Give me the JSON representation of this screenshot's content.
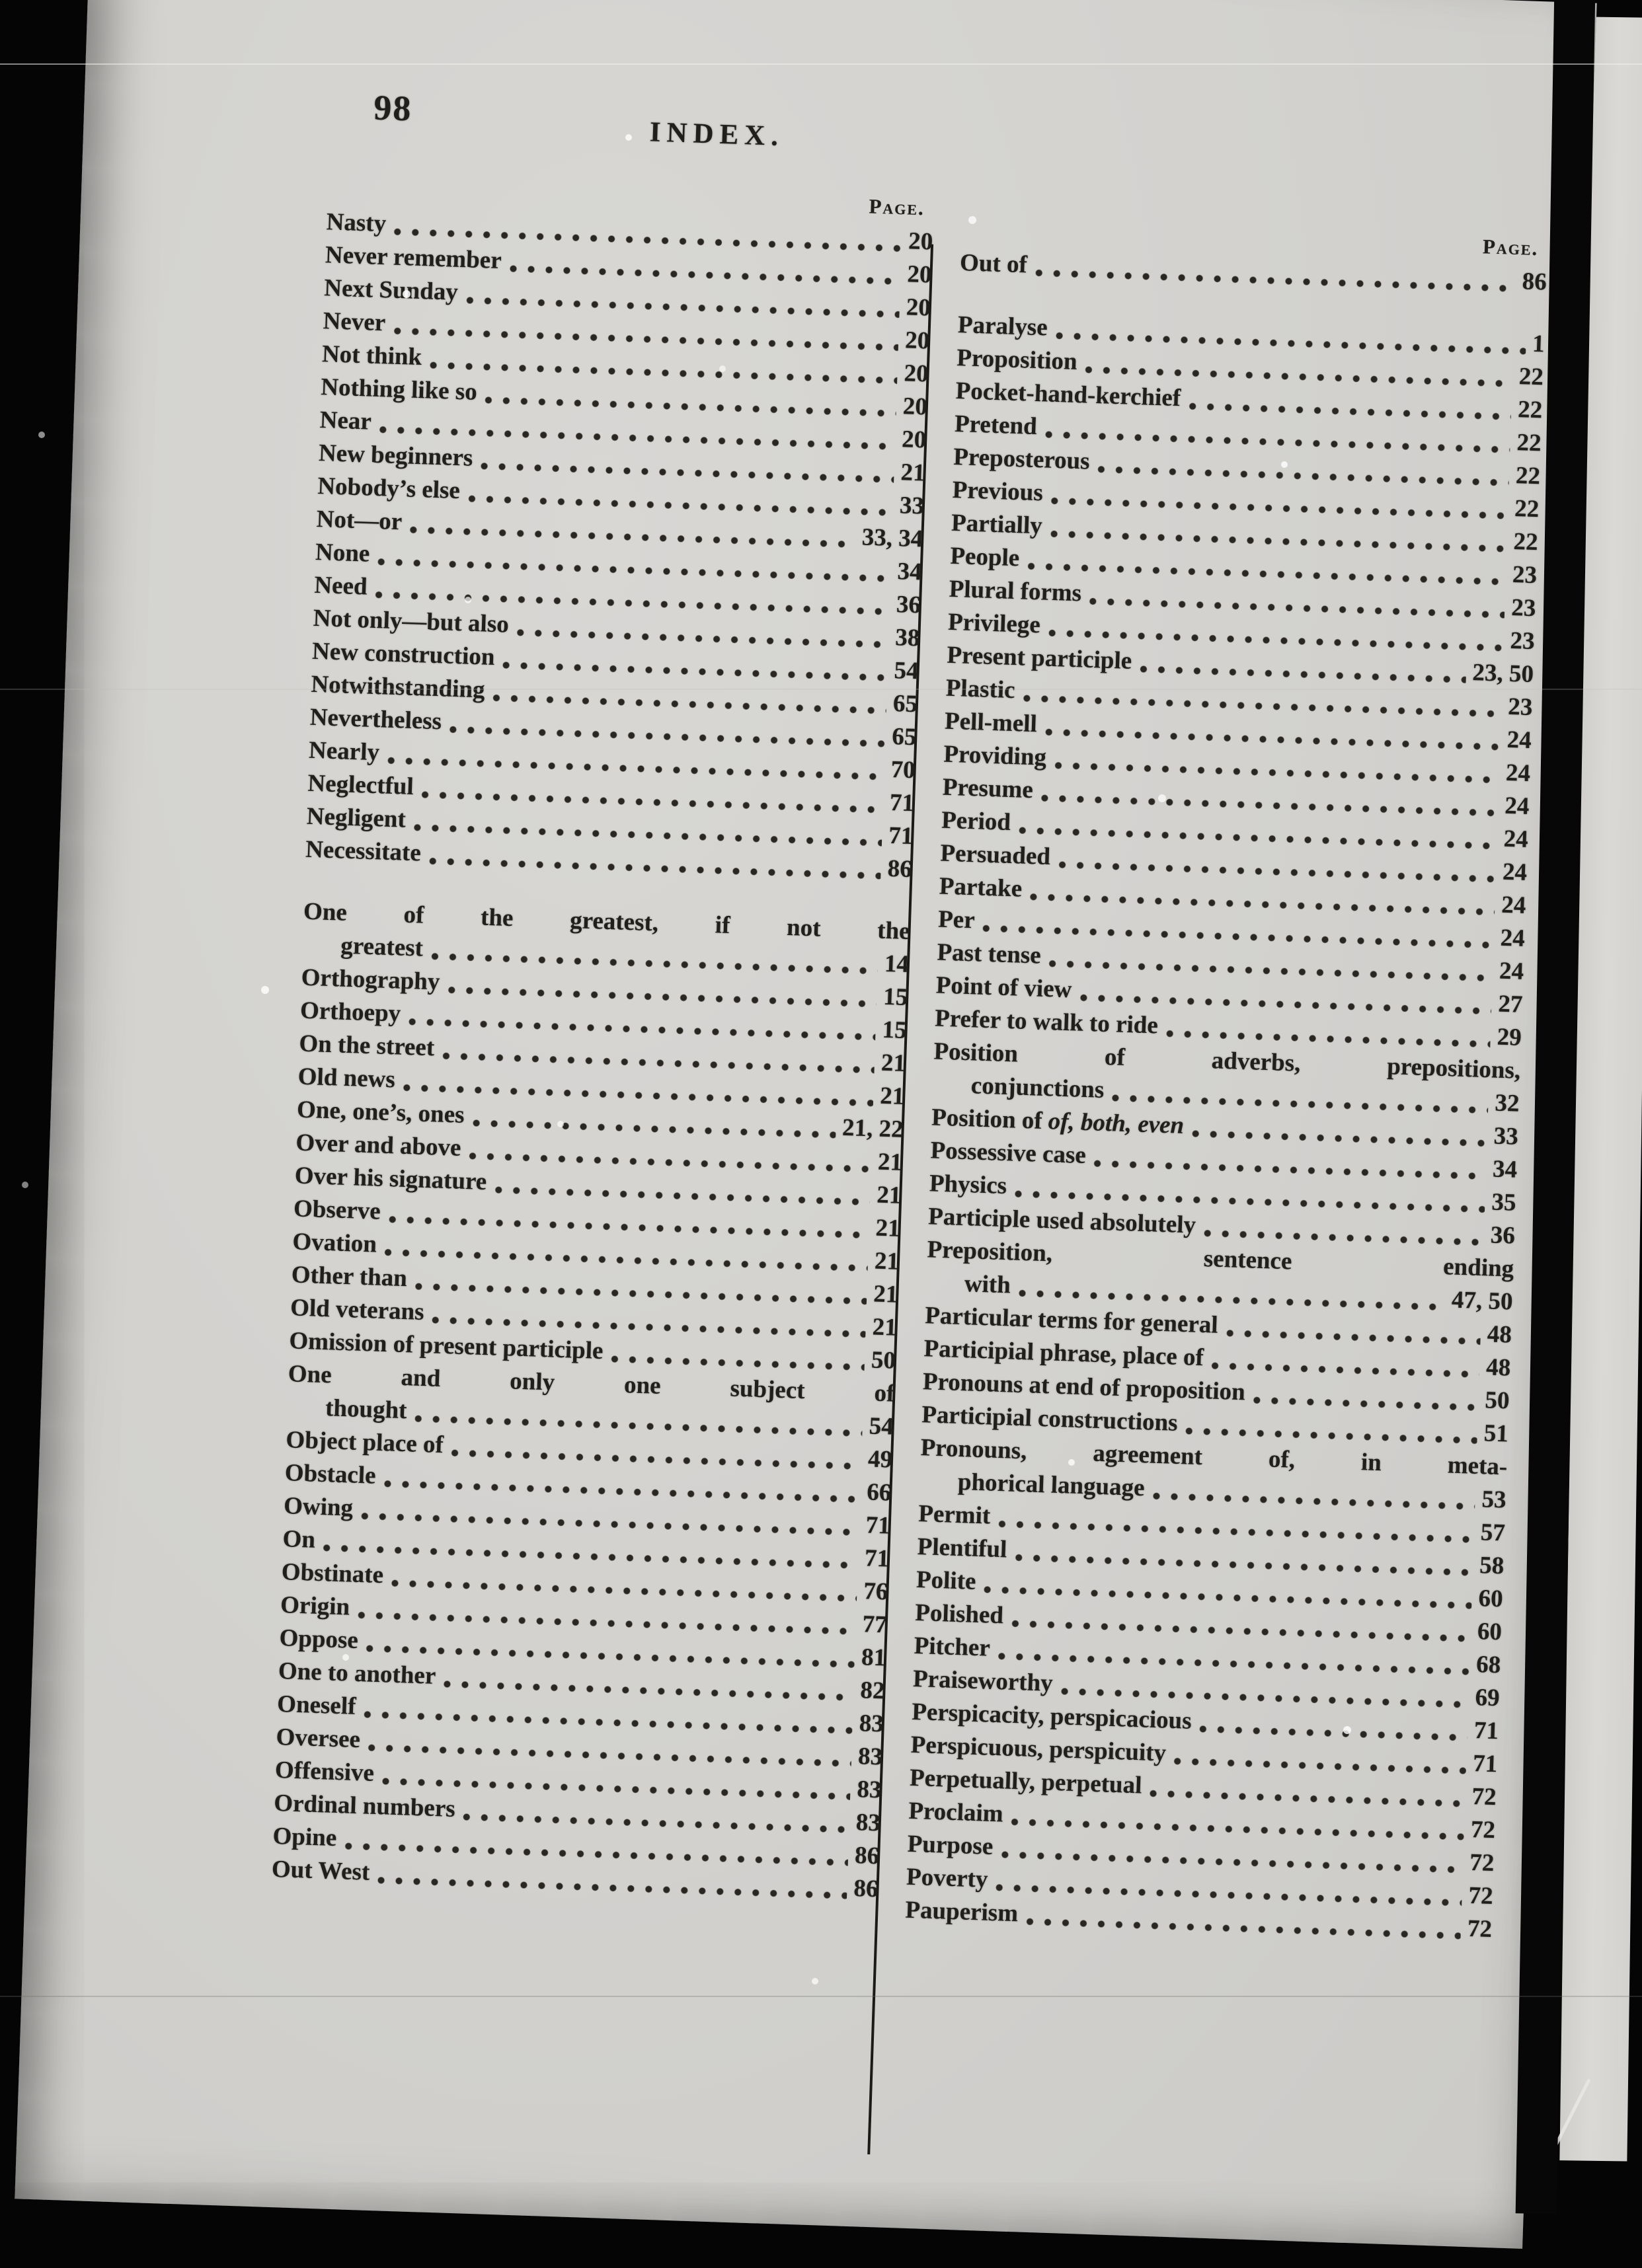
{
  "folio": "98",
  "title": "INDEX.",
  "colors": {
    "page_bg": "#d3d2cf",
    "ink": "#211f1b",
    "backdrop": "#050505"
  },
  "columns": {
    "left": {
      "header": "Page.",
      "groups": [
        {
          "lines": [
            {
              "t": "Nasty",
              "n": "20"
            },
            {
              "t": "Never remember",
              "n": "20"
            },
            {
              "t": "Next Sunday",
              "n": "20"
            },
            {
              "t": "Never",
              "n": "20"
            },
            {
              "t": "Not think",
              "n": "20"
            },
            {
              "t": "Nothing like so",
              "n": "20"
            },
            {
              "t": "Near",
              "n": "20"
            },
            {
              "t": "New beginners",
              "n": "21"
            },
            {
              "t": "Nobody’s else",
              "n": "33"
            },
            {
              "t": "Not—or",
              "n": "33, 34"
            },
            {
              "t": "None",
              "n": "34"
            },
            {
              "t": "Need",
              "n": "36"
            },
            {
              "t": "Not only—but also",
              "n": "38"
            },
            {
              "t": "New construction",
              "n": "54"
            },
            {
              "t": "Notwithstanding",
              "n": "65"
            },
            {
              "t": "Nevertheless",
              "n": "65"
            },
            {
              "t": "Nearly",
              "n": "70"
            },
            {
              "t": "Neglectful",
              "n": "71"
            },
            {
              "t": "Negligent",
              "n": "71"
            },
            {
              "t": "Necessitate",
              "n": "86"
            }
          ]
        },
        {
          "lines": [
            {
              "t": "One of the greatest, if not the",
              "j": true
            },
            {
              "t": "greatest",
              "i": 1,
              "n": "14"
            },
            {
              "t": "Orthography",
              "n": "15"
            },
            {
              "t": "Orthoepy",
              "n": "15"
            },
            {
              "t": "On the street",
              "n": "21"
            },
            {
              "t": "Old news",
              "n": "21"
            },
            {
              "t": "One, one’s, ones",
              "n": "21, 22"
            },
            {
              "t": "Over and above",
              "n": "21"
            },
            {
              "t": "Over his signature",
              "n": "21"
            },
            {
              "t": "Observe",
              "n": "21"
            },
            {
              "t": "Ovation",
              "n": "21"
            },
            {
              "t": "Other than",
              "n": "21"
            },
            {
              "t": "Old veterans",
              "n": "21"
            },
            {
              "t": "Omission of present participle",
              "n": "50"
            },
            {
              "t": "One and only one subject of",
              "j": true
            },
            {
              "t": "thought",
              "i": 1,
              "n": "54"
            },
            {
              "t": "Object place of",
              "n": "49"
            },
            {
              "t": "Obstacle",
              "n": "66"
            },
            {
              "t": "Owing",
              "n": "71"
            },
            {
              "t": "On",
              "n": "71"
            },
            {
              "t": "Obstinate",
              "n": "76"
            },
            {
              "t": "Origin",
              "n": "77"
            },
            {
              "t": "Oppose",
              "n": "81"
            },
            {
              "t": "One to another",
              "n": "82"
            },
            {
              "t": "Oneself",
              "n": "83"
            },
            {
              "t": "Oversee",
              "n": "83"
            },
            {
              "t": "Offensive",
              "n": "83"
            },
            {
              "t": "Ordinal numbers",
              "n": "83"
            },
            {
              "t": "Opine",
              "n": "86"
            },
            {
              "t": "Out West",
              "n": "86"
            }
          ]
        }
      ]
    },
    "right": {
      "header": "Page.",
      "groups": [
        {
          "lines": [
            {
              "t": "Out of",
              "n": "86"
            }
          ]
        },
        {
          "lines": [
            {
              "t": "Paralyse",
              "n": "1"
            },
            {
              "t": "Proposition",
              "n": "22"
            },
            {
              "t": "Pocket-hand-kerchief",
              "n": "22"
            },
            {
              "t": "Pretend",
              "n": "22"
            },
            {
              "t": "Preposterous",
              "n": "22"
            },
            {
              "t": "Previous",
              "n": "22"
            },
            {
              "t": "Partially",
              "n": "22"
            },
            {
              "t": "People",
              "n": "23"
            },
            {
              "t": "Plural forms",
              "n": "23"
            },
            {
              "t": "Privilege",
              "n": "23"
            },
            {
              "t": "Present participle",
              "n": "23, 50"
            },
            {
              "t": "Plastic",
              "n": "23"
            },
            {
              "t": "Pell-mell",
              "n": "24"
            },
            {
              "t": "Providing",
              "n": "24"
            },
            {
              "t": "Presume",
              "n": "24"
            },
            {
              "t": "Period",
              "n": "24"
            },
            {
              "t": "Persuaded",
              "n": "24"
            },
            {
              "t": "Partake",
              "n": "24"
            },
            {
              "t": "Per",
              "n": "24"
            },
            {
              "t": "Past tense",
              "n": "24"
            },
            {
              "t": "Point of view",
              "n": "27"
            },
            {
              "t": "Prefer to walk to ride",
              "n": "29"
            },
            {
              "t": "Position of adverbs, prepositions,",
              "j": true
            },
            {
              "t": "conjunctions",
              "i": 1,
              "n": "32"
            },
            {
              "t": "Position of",
              "t2": "of, both, even",
              "n": "33"
            },
            {
              "t": "Possessive case",
              "n": "34"
            },
            {
              "t": "Physics",
              "n": "35"
            },
            {
              "t": "Participle used absolutely",
              "n": "36"
            },
            {
              "t": "Preposition, sentence ending",
              "j": true
            },
            {
              "t": "with",
              "i": 1,
              "n": "47, 50"
            },
            {
              "t": "Particular terms for general",
              "n": "48"
            },
            {
              "t": "Participial phrase, place of",
              "n": "48"
            },
            {
              "t": "Pronouns at end of proposition",
              "n": "50"
            },
            {
              "t": "Participial constructions",
              "n": "51"
            },
            {
              "t": "Pronouns, agreement of, in meta-",
              "j": true
            },
            {
              "t": "phorical language",
              "i": 1,
              "n": "53"
            },
            {
              "t": "Permit",
              "n": "57"
            },
            {
              "t": "Plentiful",
              "n": "58"
            },
            {
              "t": "Polite",
              "n": "60"
            },
            {
              "t": "Polished",
              "n": "60"
            },
            {
              "t": "Pitcher",
              "n": "68"
            },
            {
              "t": "Praiseworthy",
              "n": "69"
            },
            {
              "t": "Perspicacity, perspicacious",
              "n": "71"
            },
            {
              "t": "Perspicuous, perspicuity",
              "n": "71"
            },
            {
              "t": "Perpetually, perpetual",
              "n": "72"
            },
            {
              "t": "Proclaim",
              "n": "72"
            },
            {
              "t": "Purpose",
              "n": "72"
            },
            {
              "t": "Poverty",
              "n": "72"
            },
            {
              "t": "Pauperism",
              "n": "72"
            }
          ]
        }
      ]
    }
  }
}
